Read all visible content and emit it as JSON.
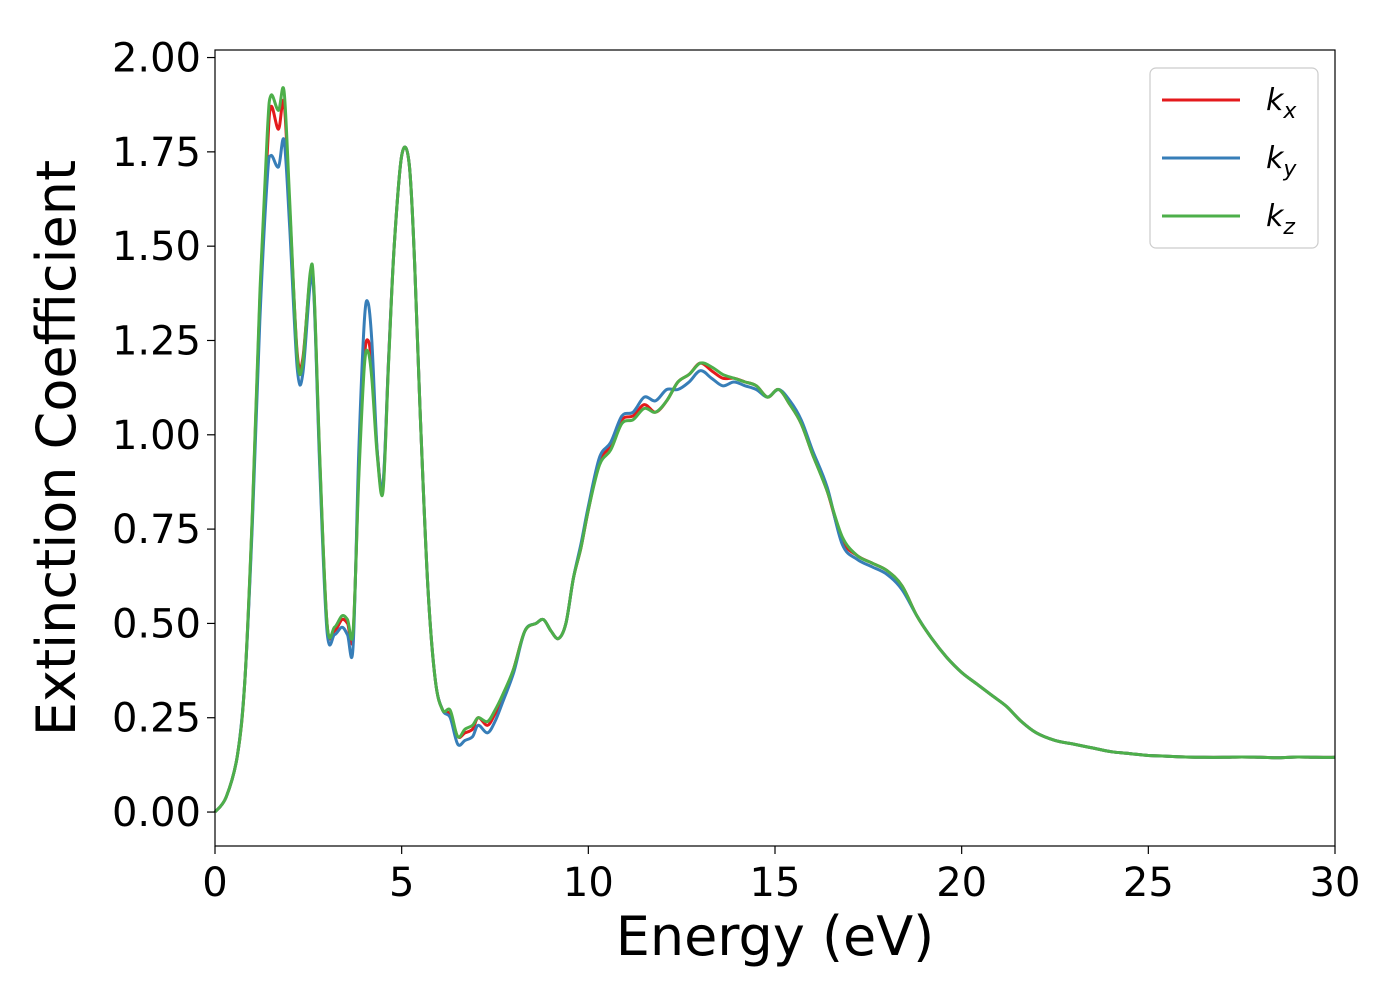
{
  "chart_data": {
    "type": "line",
    "xlabel": "Energy (eV)",
    "ylabel": "Extinction Coefficient",
    "xlim": [
      0,
      30
    ],
    "ylim": [
      -0.09,
      2.02
    ],
    "xticks": [
      0,
      5,
      10,
      15,
      20,
      25,
      30
    ],
    "xtick_labels": [
      "0",
      "5",
      "10",
      "15",
      "20",
      "25",
      "30"
    ],
    "yticks": [
      0.0,
      0.25,
      0.5,
      0.75,
      1.0,
      1.25,
      1.5,
      1.75,
      2.0
    ],
    "ytick_labels": [
      "0.00",
      "0.25",
      "0.50",
      "0.75",
      "1.00",
      "1.25",
      "1.50",
      "1.75",
      "2.00"
    ],
    "grid": false,
    "legend_position": "top-right",
    "x": [
      0,
      0.3,
      0.6,
      0.8,
      1.0,
      1.2,
      1.4,
      1.5,
      1.7,
      1.85,
      2.0,
      2.2,
      2.35,
      2.55,
      2.65,
      2.8,
      3.0,
      3.2,
      3.4,
      3.55,
      3.7,
      3.85,
      4.0,
      4.1,
      4.2,
      4.35,
      4.5,
      4.65,
      4.8,
      5.0,
      5.2,
      5.35,
      5.5,
      5.7,
      5.9,
      6.1,
      6.3,
      6.5,
      6.7,
      6.9,
      7.05,
      7.3,
      7.5,
      7.7,
      8.0,
      8.3,
      8.6,
      8.8,
      9.0,
      9.2,
      9.4,
      9.6,
      9.8,
      10.0,
      10.3,
      10.6,
      10.9,
      11.2,
      11.5,
      11.8,
      12.1,
      12.4,
      12.7,
      13.0,
      13.3,
      13.6,
      13.9,
      14.2,
      14.5,
      14.8,
      15.1,
      15.4,
      15.7,
      16.0,
      16.4,
      16.8,
      17.2,
      17.6,
      18.0,
      18.4,
      18.8,
      19.2,
      19.6,
      20.0,
      20.4,
      20.8,
      21.2,
      21.6,
      22.0,
      22.5,
      23.0,
      23.5,
      24.0,
      24.5,
      25.0,
      25.5,
      26.0,
      26.5,
      27.0,
      27.5,
      28.0,
      28.5,
      29.0,
      29.5,
      30.0
    ],
    "series": [
      {
        "name": "k_x",
        "legend_main": "k",
        "legend_sub": "x",
        "color": "#e41a1c",
        "values": [
          0.0,
          0.04,
          0.15,
          0.35,
          0.78,
          1.35,
          1.75,
          1.87,
          1.81,
          1.88,
          1.6,
          1.22,
          1.2,
          1.42,
          1.38,
          0.95,
          0.5,
          0.48,
          0.51,
          0.5,
          0.47,
          0.9,
          1.2,
          1.25,
          1.18,
          0.95,
          0.86,
          1.2,
          1.5,
          1.74,
          1.72,
          1.45,
          1.05,
          0.6,
          0.35,
          0.27,
          0.26,
          0.2,
          0.21,
          0.22,
          0.25,
          0.23,
          0.26,
          0.3,
          0.38,
          0.48,
          0.5,
          0.51,
          0.48,
          0.46,
          0.5,
          0.62,
          0.7,
          0.8,
          0.93,
          0.97,
          1.04,
          1.05,
          1.08,
          1.06,
          1.09,
          1.14,
          1.16,
          1.19,
          1.17,
          1.15,
          1.15,
          1.14,
          1.13,
          1.1,
          1.12,
          1.08,
          1.03,
          0.95,
          0.85,
          0.72,
          0.68,
          0.66,
          0.64,
          0.6,
          0.52,
          0.46,
          0.41,
          0.37,
          0.34,
          0.31,
          0.28,
          0.24,
          0.21,
          0.19,
          0.18,
          0.17,
          0.16,
          0.155,
          0.15,
          0.148,
          0.146,
          0.145,
          0.145,
          0.146,
          0.145,
          0.144,
          0.146,
          0.145,
          0.145
        ]
      },
      {
        "name": "k_y",
        "legend_main": "k",
        "legend_sub": "y",
        "color": "#377eb8",
        "values": [
          0.0,
          0.04,
          0.15,
          0.35,
          0.76,
          1.3,
          1.68,
          1.74,
          1.71,
          1.78,
          1.55,
          1.18,
          1.16,
          1.4,
          1.37,
          0.93,
          0.48,
          0.47,
          0.49,
          0.47,
          0.44,
          0.95,
          1.3,
          1.35,
          1.25,
          0.95,
          0.87,
          1.2,
          1.5,
          1.74,
          1.72,
          1.45,
          1.05,
          0.6,
          0.35,
          0.27,
          0.25,
          0.18,
          0.19,
          0.2,
          0.23,
          0.21,
          0.24,
          0.29,
          0.37,
          0.48,
          0.5,
          0.51,
          0.48,
          0.46,
          0.5,
          0.62,
          0.71,
          0.81,
          0.94,
          0.98,
          1.05,
          1.06,
          1.1,
          1.09,
          1.12,
          1.12,
          1.14,
          1.17,
          1.15,
          1.13,
          1.14,
          1.13,
          1.12,
          1.1,
          1.12,
          1.09,
          1.04,
          0.96,
          0.86,
          0.71,
          0.67,
          0.65,
          0.63,
          0.59,
          0.52,
          0.46,
          0.41,
          0.37,
          0.34,
          0.31,
          0.28,
          0.24,
          0.21,
          0.19,
          0.18,
          0.17,
          0.16,
          0.155,
          0.15,
          0.148,
          0.146,
          0.145,
          0.145,
          0.146,
          0.145,
          0.144,
          0.146,
          0.145,
          0.145
        ]
      },
      {
        "name": "k_z",
        "legend_main": "k",
        "legend_sub": "z",
        "color": "#4daf4a",
        "values": [
          0.0,
          0.04,
          0.15,
          0.35,
          0.79,
          1.37,
          1.8,
          1.9,
          1.86,
          1.91,
          1.62,
          1.21,
          1.19,
          1.43,
          1.39,
          0.96,
          0.5,
          0.49,
          0.52,
          0.51,
          0.48,
          0.88,
          1.18,
          1.22,
          1.15,
          0.94,
          0.85,
          1.19,
          1.5,
          1.74,
          1.72,
          1.45,
          1.05,
          0.6,
          0.35,
          0.27,
          0.27,
          0.2,
          0.22,
          0.23,
          0.25,
          0.24,
          0.27,
          0.31,
          0.38,
          0.48,
          0.5,
          0.51,
          0.48,
          0.46,
          0.5,
          0.62,
          0.7,
          0.8,
          0.92,
          0.96,
          1.03,
          1.04,
          1.07,
          1.06,
          1.09,
          1.14,
          1.16,
          1.19,
          1.18,
          1.16,
          1.15,
          1.14,
          1.13,
          1.1,
          1.12,
          1.08,
          1.03,
          0.95,
          0.85,
          0.73,
          0.68,
          0.66,
          0.64,
          0.6,
          0.52,
          0.46,
          0.41,
          0.37,
          0.34,
          0.31,
          0.28,
          0.24,
          0.21,
          0.19,
          0.18,
          0.17,
          0.16,
          0.155,
          0.15,
          0.148,
          0.146,
          0.145,
          0.145,
          0.146,
          0.145,
          0.144,
          0.146,
          0.145,
          0.145
        ]
      }
    ]
  }
}
